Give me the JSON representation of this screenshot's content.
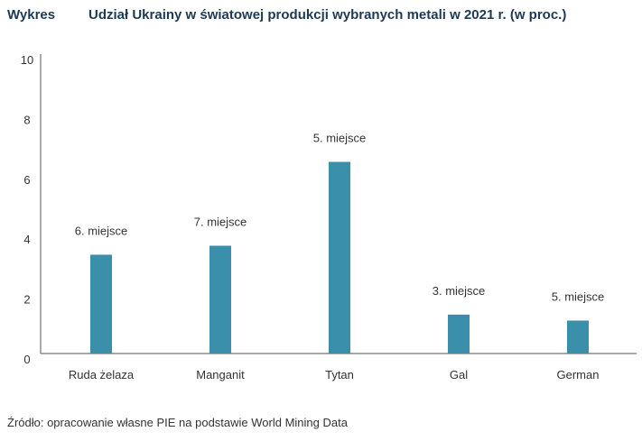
{
  "header": {
    "label": "Wykres",
    "title": "Udział Ukrainy w światowej produkcji wybranych metali w 2021 r. (w proc.)"
  },
  "chart_data": {
    "type": "bar",
    "title": "Udział Ukrainy w światowej produkcji wybranych metali w 2021 r. (w proc.)",
    "categories": [
      "Ruda żelaza",
      "Manganit",
      "Tytan",
      "Gal",
      "German"
    ],
    "values": [
      3.3,
      3.6,
      6.4,
      1.3,
      1.1
    ],
    "data_labels": [
      "6. miejsce",
      "7. miejsce",
      "5. miejsce",
      "3. miejsce",
      "5. miejsce"
    ],
    "yticks": [
      "0",
      "2",
      "4",
      "6",
      "8",
      "10"
    ],
    "ylim": [
      0,
      10
    ],
    "xlabel": "",
    "ylabel": "",
    "grid": false,
    "bar_color": "#3a8fab"
  },
  "footer": {
    "source": "Źródło: opracowanie własne PIE na podstawie World Mining Data"
  }
}
